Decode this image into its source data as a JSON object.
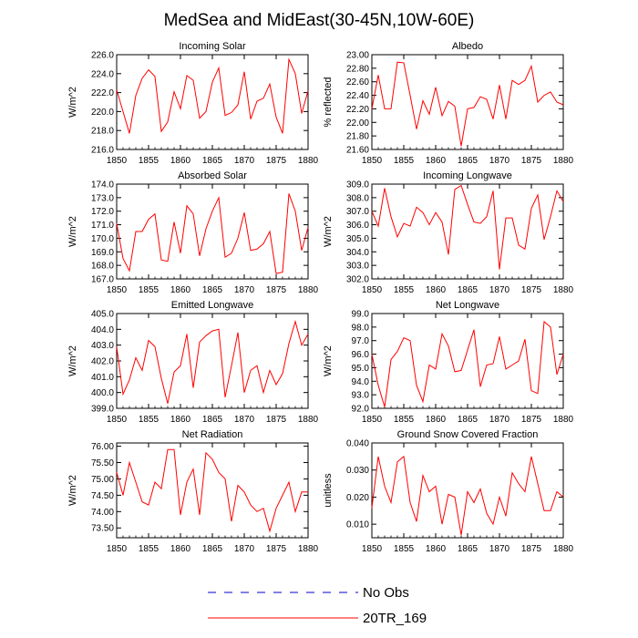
{
  "figure": {
    "title": "MedSea and MidEast(30-45N,10W-60E)"
  },
  "legend": [
    {
      "label": "No Obs",
      "color": "#0000cc",
      "dash": true
    },
    {
      "label": "20TR_169",
      "color": "#ff0000",
      "dash": false
    }
  ],
  "colors": {
    "series": "#ff0000",
    "axis": "#000000"
  },
  "chart_data": [
    {
      "type": "line",
      "title": "Incoming Solar",
      "ylabel": "W/m^2",
      "xlim": [
        1850,
        1880
      ],
      "ylim": [
        216,
        226
      ],
      "xticks": [
        "1850",
        "1855",
        "1860",
        "1865",
        "1870",
        "1875",
        "1880"
      ],
      "yticks": [
        "216.0",
        "218.0",
        "220.0",
        "222.0",
        "224.0",
        "226.0"
      ],
      "x": [
        1850,
        1851,
        1852,
        1853,
        1854,
        1855,
        1856,
        1857,
        1858,
        1859,
        1860,
        1861,
        1862,
        1863,
        1864,
        1865,
        1866,
        1867,
        1868,
        1869,
        1870,
        1871,
        1872,
        1873,
        1874,
        1875,
        1876,
        1877,
        1878,
        1879,
        1880
      ],
      "series": [
        {
          "values": [
            222.3,
            220.0,
            217.7,
            221.7,
            223.5,
            224.4,
            223.7,
            217.9,
            218.9,
            222.1,
            220.3,
            223.8,
            223.3,
            219.3,
            220.0,
            223.1,
            224.6,
            219.6,
            219.9,
            220.7,
            224.2,
            219.2,
            221.1,
            221.4,
            222.9,
            219.4,
            217.7,
            225.5,
            224.0,
            219.8,
            222.2
          ]
        }
      ]
    },
    {
      "type": "line",
      "title": "Albedo",
      "ylabel": "% reflected",
      "xlim": [
        1850,
        1880
      ],
      "ylim": [
        21.6,
        23.0
      ],
      "xticks": [
        "1850",
        "1855",
        "1860",
        "1865",
        "1870",
        "1875",
        "1880"
      ],
      "yticks": [
        "21.60",
        "21.80",
        "22.00",
        "22.20",
        "22.40",
        "22.60",
        "22.80",
        "23.00"
      ],
      "x": [
        1850,
        1851,
        1852,
        1853,
        1854,
        1855,
        1856,
        1857,
        1858,
        1859,
        1860,
        1861,
        1862,
        1863,
        1864,
        1865,
        1866,
        1867,
        1868,
        1869,
        1870,
        1871,
        1872,
        1873,
        1874,
        1875,
        1876,
        1877,
        1878,
        1879,
        1880
      ],
      "series": [
        {
          "values": [
            22.2,
            22.7,
            22.2,
            22.2,
            22.89,
            22.88,
            22.4,
            21.9,
            22.32,
            22.12,
            22.52,
            22.1,
            22.31,
            22.24,
            21.65,
            22.2,
            22.22,
            22.38,
            22.34,
            22.05,
            22.55,
            22.05,
            22.62,
            22.56,
            22.62,
            22.83,
            22.3,
            22.4,
            22.45,
            22.3,
            22.26
          ]
        }
      ]
    },
    {
      "type": "line",
      "title": "Absorbed Solar",
      "ylabel": "W/m^2",
      "xlim": [
        1850,
        1880
      ],
      "ylim": [
        167,
        174
      ],
      "xticks": [
        "1850",
        "1855",
        "1860",
        "1865",
        "1870",
        "1875",
        "1880"
      ],
      "yticks": [
        "167.0",
        "168.0",
        "169.0",
        "170.0",
        "171.0",
        "172.0",
        "173.0",
        "174.0"
      ],
      "x": [
        1850,
        1851,
        1852,
        1853,
        1854,
        1855,
        1856,
        1857,
        1858,
        1859,
        1860,
        1861,
        1862,
        1863,
        1864,
        1865,
        1866,
        1867,
        1868,
        1869,
        1870,
        1871,
        1872,
        1873,
        1874,
        1875,
        1876,
        1877,
        1878,
        1879,
        1880
      ],
      "series": [
        {
          "values": [
            171.1,
            168.5,
            167.6,
            170.5,
            170.5,
            171.4,
            171.8,
            168.4,
            168.3,
            171.2,
            168.9,
            172.4,
            171.8,
            168.7,
            170.7,
            172.0,
            173.0,
            168.6,
            168.9,
            170.0,
            171.9,
            169.1,
            169.2,
            169.6,
            170.5,
            167.4,
            167.5,
            173.3,
            172.0,
            169.1,
            170.8
          ]
        }
      ]
    },
    {
      "type": "line",
      "title": "Incoming Longwave",
      "ylabel": "W/m^2",
      "xlim": [
        1850,
        1880
      ],
      "ylim": [
        302,
        309
      ],
      "xticks": [
        "1850",
        "1855",
        "1860",
        "1865",
        "1870",
        "1875",
        "1880"
      ],
      "yticks": [
        "302.0",
        "303.0",
        "304.0",
        "305.0",
        "306.0",
        "307.0",
        "308.0",
        "309.0"
      ],
      "x": [
        1850,
        1851,
        1852,
        1853,
        1854,
        1855,
        1856,
        1857,
        1858,
        1859,
        1860,
        1861,
        1862,
        1863,
        1864,
        1865,
        1866,
        1867,
        1868,
        1869,
        1870,
        1871,
        1872,
        1873,
        1874,
        1875,
        1876,
        1877,
        1878,
        1879,
        1880
      ],
      "series": [
        {
          "values": [
            307.0,
            305.9,
            308.7,
            306.6,
            305.1,
            306.1,
            305.9,
            307.3,
            306.9,
            306.0,
            306.9,
            306.2,
            303.8,
            308.6,
            308.9,
            307.5,
            306.2,
            306.1,
            306.6,
            308.5,
            302.7,
            306.5,
            306.5,
            304.5,
            304.2,
            307.2,
            308.2,
            304.9,
            306.6,
            308.5,
            307.7
          ]
        }
      ]
    },
    {
      "type": "line",
      "title": "Emitted Longwave",
      "ylabel": "W/m^2",
      "xlim": [
        1850,
        1880
      ],
      "ylim": [
        399,
        405
      ],
      "xticks": [
        "1850",
        "1855",
        "1860",
        "1865",
        "1870",
        "1875",
        "1880"
      ],
      "yticks": [
        "399.0",
        "400.0",
        "401.0",
        "402.0",
        "403.0",
        "404.0",
        "405.0"
      ],
      "x": [
        1850,
        1851,
        1852,
        1853,
        1854,
        1855,
        1856,
        1857,
        1858,
        1859,
        1860,
        1861,
        1862,
        1863,
        1864,
        1865,
        1866,
        1867,
        1868,
        1869,
        1870,
        1871,
        1872,
        1873,
        1874,
        1875,
        1876,
        1877,
        1878,
        1879,
        1880
      ],
      "series": [
        {
          "values": [
            402.9,
            399.9,
            400.8,
            402.2,
            401.4,
            403.3,
            402.9,
            400.9,
            399.3,
            401.3,
            401.7,
            403.7,
            400.3,
            403.2,
            403.6,
            403.9,
            404.0,
            399.7,
            401.7,
            403.8,
            400.0,
            401.4,
            401.7,
            400.0,
            401.4,
            400.5,
            401.2,
            403.1,
            404.5,
            403.0,
            403.7
          ]
        }
      ]
    },
    {
      "type": "line",
      "title": "Net Longwave",
      "ylabel": "W/m^2",
      "xlim": [
        1850,
        1880
      ],
      "ylim": [
        92,
        99
      ],
      "xticks": [
        "1850",
        "1855",
        "1860",
        "1865",
        "1870",
        "1875",
        "1880"
      ],
      "yticks": [
        "92.0",
        "93.0",
        "94.0",
        "95.0",
        "96.0",
        "97.0",
        "98.0",
        "99.0"
      ],
      "x": [
        1850,
        1851,
        1852,
        1853,
        1854,
        1855,
        1856,
        1857,
        1858,
        1859,
        1860,
        1861,
        1862,
        1863,
        1864,
        1865,
        1866,
        1867,
        1868,
        1869,
        1870,
        1871,
        1872,
        1873,
        1874,
        1875,
        1876,
        1877,
        1878,
        1879,
        1880
      ],
      "series": [
        {
          "values": [
            96.0,
            93.7,
            92.1,
            95.6,
            96.2,
            97.2,
            97.0,
            93.7,
            92.5,
            95.2,
            94.9,
            97.5,
            96.6,
            94.7,
            94.8,
            96.3,
            97.8,
            93.6,
            95.2,
            95.3,
            97.3,
            94.9,
            95.2,
            95.5,
            97.1,
            93.3,
            93.1,
            98.4,
            98.0,
            94.5,
            96.0
          ]
        }
      ]
    },
    {
      "type": "line",
      "title": "Net Radiation",
      "ylabel": "W/m^2",
      "xlim": [
        1850,
        1880
      ],
      "ylim": [
        73.2,
        76.1
      ],
      "xticks": [
        "1850",
        "1855",
        "1860",
        "1865",
        "1870",
        "1875",
        "1880"
      ],
      "yticks": [
        "73.50",
        "74.00",
        "74.50",
        "75.00",
        "75.50",
        "76.00"
      ],
      "x": [
        1850,
        1851,
        1852,
        1853,
        1854,
        1855,
        1856,
        1857,
        1858,
        1859,
        1860,
        1861,
        1862,
        1863,
        1864,
        1865,
        1866,
        1867,
        1868,
        1869,
        1870,
        1871,
        1872,
        1873,
        1874,
        1875,
        1876,
        1877,
        1878,
        1879,
        1880
      ],
      "series": [
        {
          "values": [
            75.2,
            74.5,
            75.5,
            74.9,
            74.3,
            74.2,
            74.9,
            74.7,
            75.9,
            75.9,
            73.9,
            74.9,
            75.3,
            73.9,
            75.8,
            75.6,
            75.2,
            75.0,
            73.7,
            74.8,
            74.6,
            74.2,
            74.0,
            74.1,
            73.4,
            74.1,
            74.5,
            74.9,
            74.0,
            74.6,
            74.6
          ]
        }
      ]
    },
    {
      "type": "line",
      "title": "Ground Snow Covered Fraction",
      "ylabel": "unitless",
      "xlim": [
        1850,
        1880
      ],
      "ylim": [
        0.005,
        0.04
      ],
      "xticks": [
        "1850",
        "1855",
        "1860",
        "1865",
        "1870",
        "1875",
        "1880"
      ],
      "yticks": [
        "0.010",
        "0.020",
        "0.030",
        "0.040"
      ],
      "x": [
        1850,
        1851,
        1852,
        1853,
        1854,
        1855,
        1856,
        1857,
        1858,
        1859,
        1860,
        1861,
        1862,
        1863,
        1864,
        1865,
        1866,
        1867,
        1868,
        1869,
        1870,
        1871,
        1872,
        1873,
        1874,
        1875,
        1876,
        1877,
        1878,
        1879,
        1880
      ],
      "series": [
        {
          "values": [
            0.016,
            0.035,
            0.024,
            0.018,
            0.033,
            0.035,
            0.018,
            0.011,
            0.028,
            0.022,
            0.024,
            0.01,
            0.021,
            0.02,
            0.006,
            0.022,
            0.018,
            0.023,
            0.014,
            0.01,
            0.02,
            0.013,
            0.029,
            0.025,
            0.022,
            0.035,
            0.025,
            0.015,
            0.015,
            0.022,
            0.02
          ]
        }
      ]
    }
  ]
}
